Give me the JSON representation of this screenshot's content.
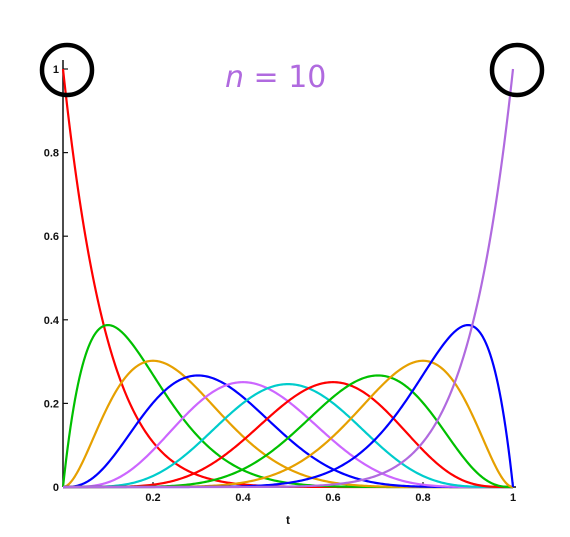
{
  "chart_data": {
    "type": "line",
    "title": "",
    "xlabel": "t",
    "ylabel": "",
    "xlim": [
      0,
      1
    ],
    "ylim": [
      0,
      1
    ],
    "grid": false,
    "xticks": [
      "0.2",
      "0.4",
      "0.6",
      "0.8",
      "1"
    ],
    "yticks": [
      "0",
      "0.2",
      "0.4",
      "0.6",
      "0.8",
      "1"
    ],
    "annotation": {
      "var": "n",
      "rest": " = 10",
      "color": "#b06adf"
    },
    "highlight_circles": [
      {
        "x": 0,
        "y": 1
      },
      {
        "x": 1,
        "y": 1
      }
    ],
    "basis_degree": 10,
    "series": [
      {
        "i": 0,
        "color": "#ff0000",
        "x": [
          0,
          0.1,
          0.2,
          0.3,
          0.4,
          0.5,
          0.6,
          0.7,
          0.8,
          0.9,
          1
        ],
        "y": [
          1,
          0.349,
          0.107,
          0.028,
          0.006,
          0.001,
          0.0001,
          0,
          0,
          0,
          0
        ]
      },
      {
        "i": 1,
        "color": "#00c000",
        "x": [
          0,
          0.1,
          0.2,
          0.3,
          0.4,
          0.5,
          0.6,
          0.7,
          0.8,
          0.9,
          1
        ],
        "y": [
          0,
          0.387,
          0.268,
          0.121,
          0.04,
          0.01,
          0.002,
          0.0001,
          0,
          0,
          0
        ]
      },
      {
        "i": 2,
        "color": "#e6a000",
        "x": [
          0,
          0.1,
          0.2,
          0.3,
          0.4,
          0.5,
          0.6,
          0.7,
          0.8,
          0.9,
          1
        ],
        "y": [
          0,
          0.194,
          0.302,
          0.233,
          0.121,
          0.044,
          0.011,
          0.001,
          0.0001,
          0,
          0
        ]
      },
      {
        "i": 3,
        "color": "#0000ff",
        "x": [
          0,
          0.1,
          0.2,
          0.3,
          0.4,
          0.5,
          0.6,
          0.7,
          0.8,
          0.9,
          1
        ],
        "y": [
          0,
          0.057,
          0.201,
          0.267,
          0.215,
          0.117,
          0.042,
          0.009,
          0.001,
          0,
          0
        ]
      },
      {
        "i": 4,
        "color": "#cc66ff",
        "x": [
          0,
          0.1,
          0.2,
          0.3,
          0.4,
          0.5,
          0.6,
          0.7,
          0.8,
          0.9,
          1
        ],
        "y": [
          0,
          0.011,
          0.088,
          0.2,
          0.251,
          0.205,
          0.111,
          0.037,
          0.006,
          0.0001,
          0
        ]
      },
      {
        "i": 5,
        "color": "#00cccc",
        "x": [
          0,
          0.1,
          0.2,
          0.3,
          0.4,
          0.5,
          0.6,
          0.7,
          0.8,
          0.9,
          1
        ],
        "y": [
          0,
          0.001,
          0.026,
          0.103,
          0.201,
          0.246,
          0.201,
          0.103,
          0.026,
          0.001,
          0
        ]
      },
      {
        "i": 6,
        "color": "#ff0000",
        "x": [
          0,
          0.1,
          0.2,
          0.3,
          0.4,
          0.5,
          0.6,
          0.7,
          0.8,
          0.9,
          1
        ],
        "y": [
          0,
          0.0001,
          0.006,
          0.037,
          0.111,
          0.205,
          0.251,
          0.2,
          0.088,
          0.011,
          0
        ]
      },
      {
        "i": 7,
        "color": "#00c000",
        "x": [
          0,
          0.1,
          0.2,
          0.3,
          0.4,
          0.5,
          0.6,
          0.7,
          0.8,
          0.9,
          1
        ],
        "y": [
          0,
          0,
          0.001,
          0.009,
          0.042,
          0.117,
          0.215,
          0.267,
          0.201,
          0.057,
          0
        ]
      },
      {
        "i": 8,
        "color": "#e6a000",
        "x": [
          0,
          0.1,
          0.2,
          0.3,
          0.4,
          0.5,
          0.6,
          0.7,
          0.8,
          0.9,
          1
        ],
        "y": [
          0,
          0,
          0.0001,
          0.001,
          0.011,
          0.044,
          0.121,
          0.233,
          0.302,
          0.194,
          0
        ]
      },
      {
        "i": 9,
        "color": "#0000ff",
        "x": [
          0,
          0.1,
          0.2,
          0.3,
          0.4,
          0.5,
          0.6,
          0.7,
          0.8,
          0.9,
          1
        ],
        "y": [
          0,
          0,
          0,
          0.0001,
          0.002,
          0.01,
          0.04,
          0.121,
          0.268,
          0.387,
          0
        ]
      },
      {
        "i": 10,
        "color": "#b06adf",
        "x": [
          0,
          0.1,
          0.2,
          0.3,
          0.4,
          0.5,
          0.6,
          0.7,
          0.8,
          0.9,
          1
        ],
        "y": [
          0,
          0,
          0,
          0,
          0.0001,
          0.001,
          0.006,
          0.028,
          0.107,
          0.349,
          1
        ]
      }
    ]
  }
}
